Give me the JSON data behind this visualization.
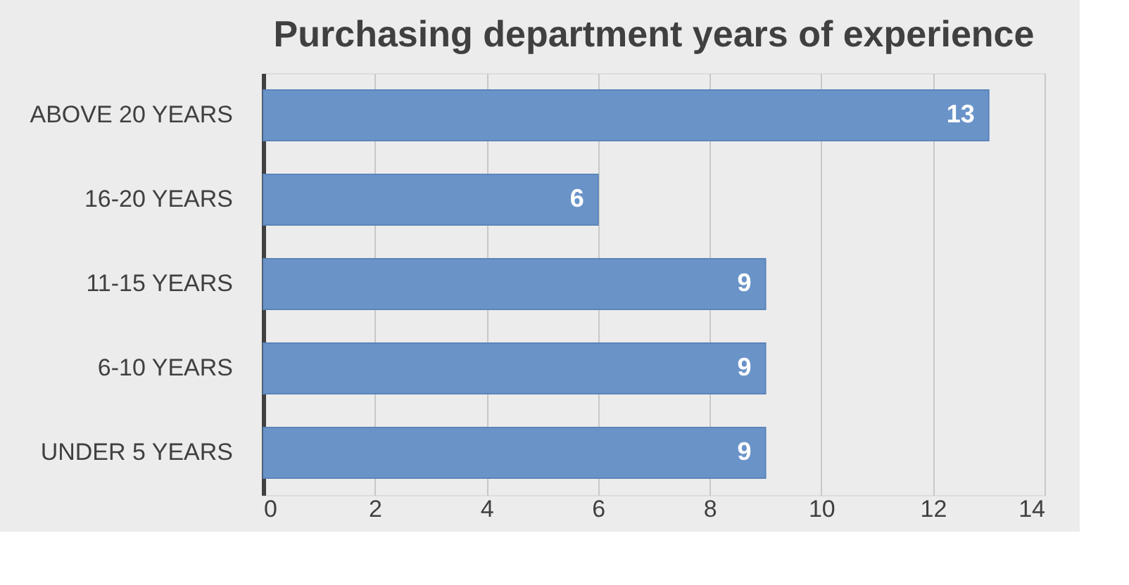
{
  "chart_data": {
    "type": "bar",
    "orientation": "horizontal",
    "title": "Purchasing department years of experience",
    "categories": [
      "ABOVE 20 YEARS",
      "16-20 YEARS",
      "11-15 YEARS",
      "6-10 YEARS",
      "UNDER 5 YEARS"
    ],
    "values": [
      13,
      6,
      9,
      9,
      9
    ],
    "color": "#6a93c8",
    "xlim": [
      0,
      14
    ],
    "xticks": [
      0,
      2,
      4,
      6,
      8,
      10,
      12,
      14
    ],
    "grid": "x",
    "data_labels": true
  }
}
